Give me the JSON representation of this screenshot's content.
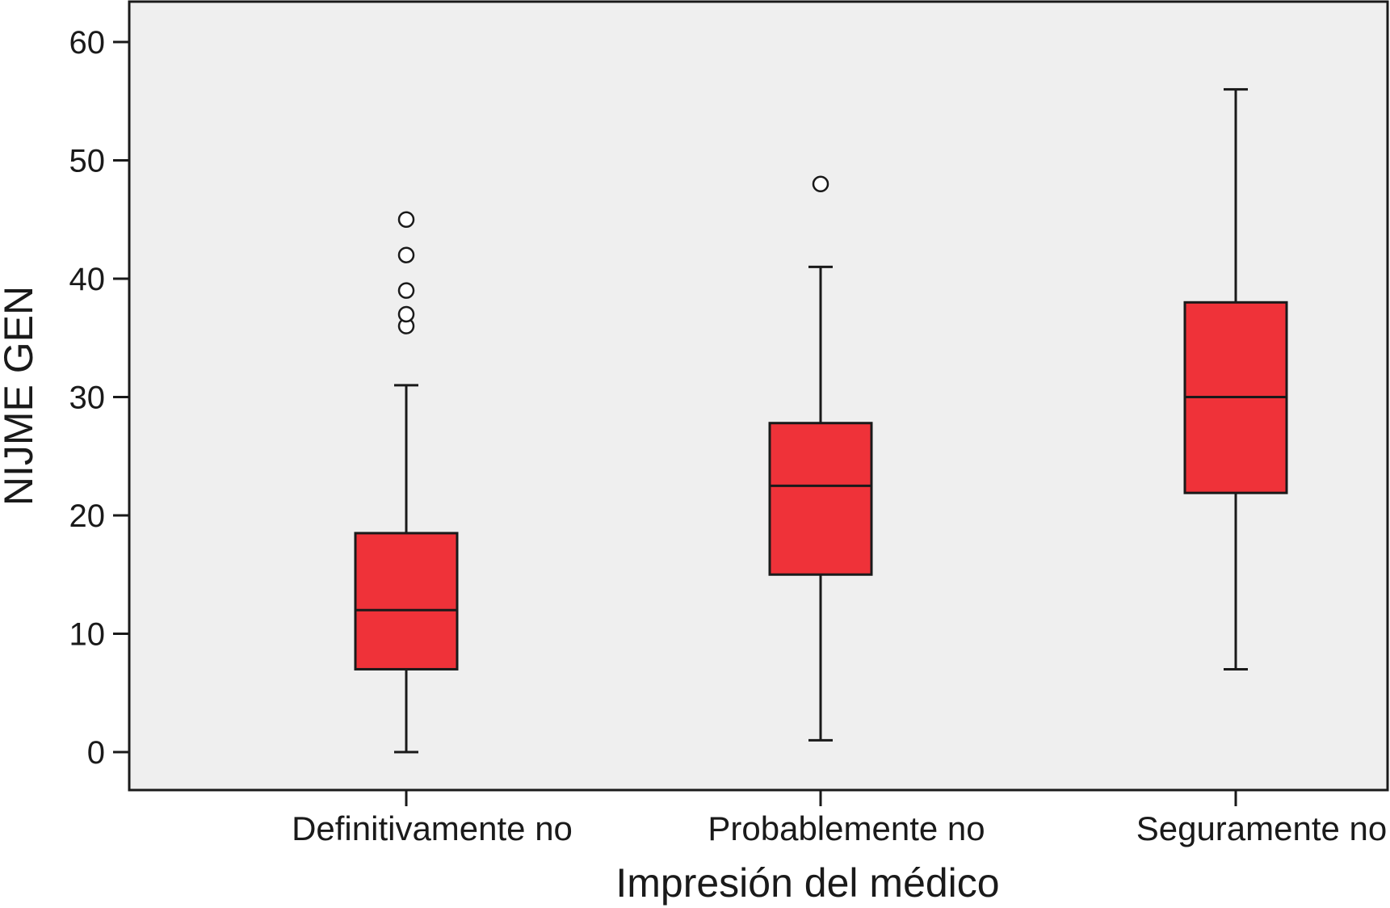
{
  "chart_data": {
    "type": "boxplot",
    "title": "",
    "xlabel": "Impresión del médico",
    "ylabel": "NIJME GEN",
    "ylim": [
      -3,
      63
    ],
    "yticks": [
      0,
      10,
      20,
      30,
      40,
      50,
      60
    ],
    "grid": false,
    "legend": "none",
    "categories": [
      "Definitivamente no",
      "Probablemente no",
      "Seguramente no"
    ],
    "boxes": [
      {
        "category": "Definitivamente no",
        "whisker_low": 0,
        "q1": 7,
        "median": 12,
        "q3": 18.5,
        "whisker_high": 31,
        "outliers": [
          36,
          37,
          39,
          42,
          45
        ]
      },
      {
        "category": "Probablemente no",
        "whisker_low": 1,
        "q1": 15,
        "median": 22.5,
        "q3": 27.8,
        "whisker_high": 41,
        "outliers": [
          48
        ]
      },
      {
        "category": "Seguramente no",
        "whisker_low": 7,
        "q1": 21.9,
        "median": 30,
        "q3": 38,
        "whisker_high": 56,
        "outliers": []
      }
    ],
    "colors": {
      "box_fill": "#ef3239",
      "plot_background": "#efefef",
      "line": "#1a1a1a",
      "outlier_fill": "#ffffff"
    }
  }
}
